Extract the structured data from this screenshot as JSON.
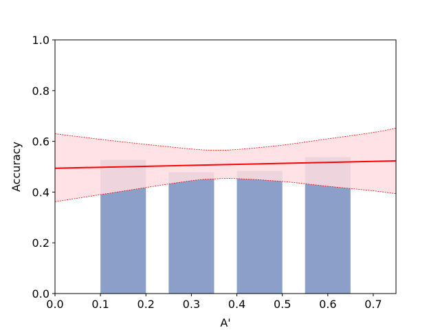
{
  "chart_data": {
    "type": "bar",
    "xlabel": "A'",
    "ylabel": "Accuracy",
    "xlim": [
      0.0,
      0.75
    ],
    "ylim": [
      0.0,
      1.0
    ],
    "xticks": [
      "0.0",
      "0.1",
      "0.2",
      "0.3",
      "0.4",
      "0.5",
      "0.6",
      "0.7"
    ],
    "yticks": [
      "0.0",
      "0.2",
      "0.4",
      "0.6",
      "0.8",
      "1.0"
    ],
    "grid": false,
    "bars": [
      {
        "x_start": 0.1,
        "x_end": 0.2,
        "value": 0.527
      },
      {
        "x_start": 0.25,
        "x_end": 0.35,
        "value": 0.478
      },
      {
        "x_start": 0.4,
        "x_end": 0.5,
        "value": 0.484
      },
      {
        "x_start": 0.55,
        "x_end": 0.65,
        "value": 0.538
      }
    ],
    "fit_line": {
      "x": [
        0.0,
        0.75
      ],
      "y": [
        0.494,
        0.523
      ]
    },
    "confidence_band": {
      "x": [
        0.0,
        0.1,
        0.2,
        0.3,
        0.35,
        0.4,
        0.5,
        0.6,
        0.7,
        0.75
      ],
      "upper": [
        0.63,
        0.608,
        0.588,
        0.57,
        0.565,
        0.568,
        0.585,
        0.61,
        0.635,
        0.652
      ],
      "lower": [
        0.362,
        0.39,
        0.418,
        0.445,
        0.452,
        0.453,
        0.442,
        0.423,
        0.405,
        0.394
      ]
    },
    "colors": {
      "bar": "#8c9fc9",
      "fit_line": "#ff0000",
      "band_fill": "#ffdde0",
      "band_edge": "#ff0000"
    }
  }
}
